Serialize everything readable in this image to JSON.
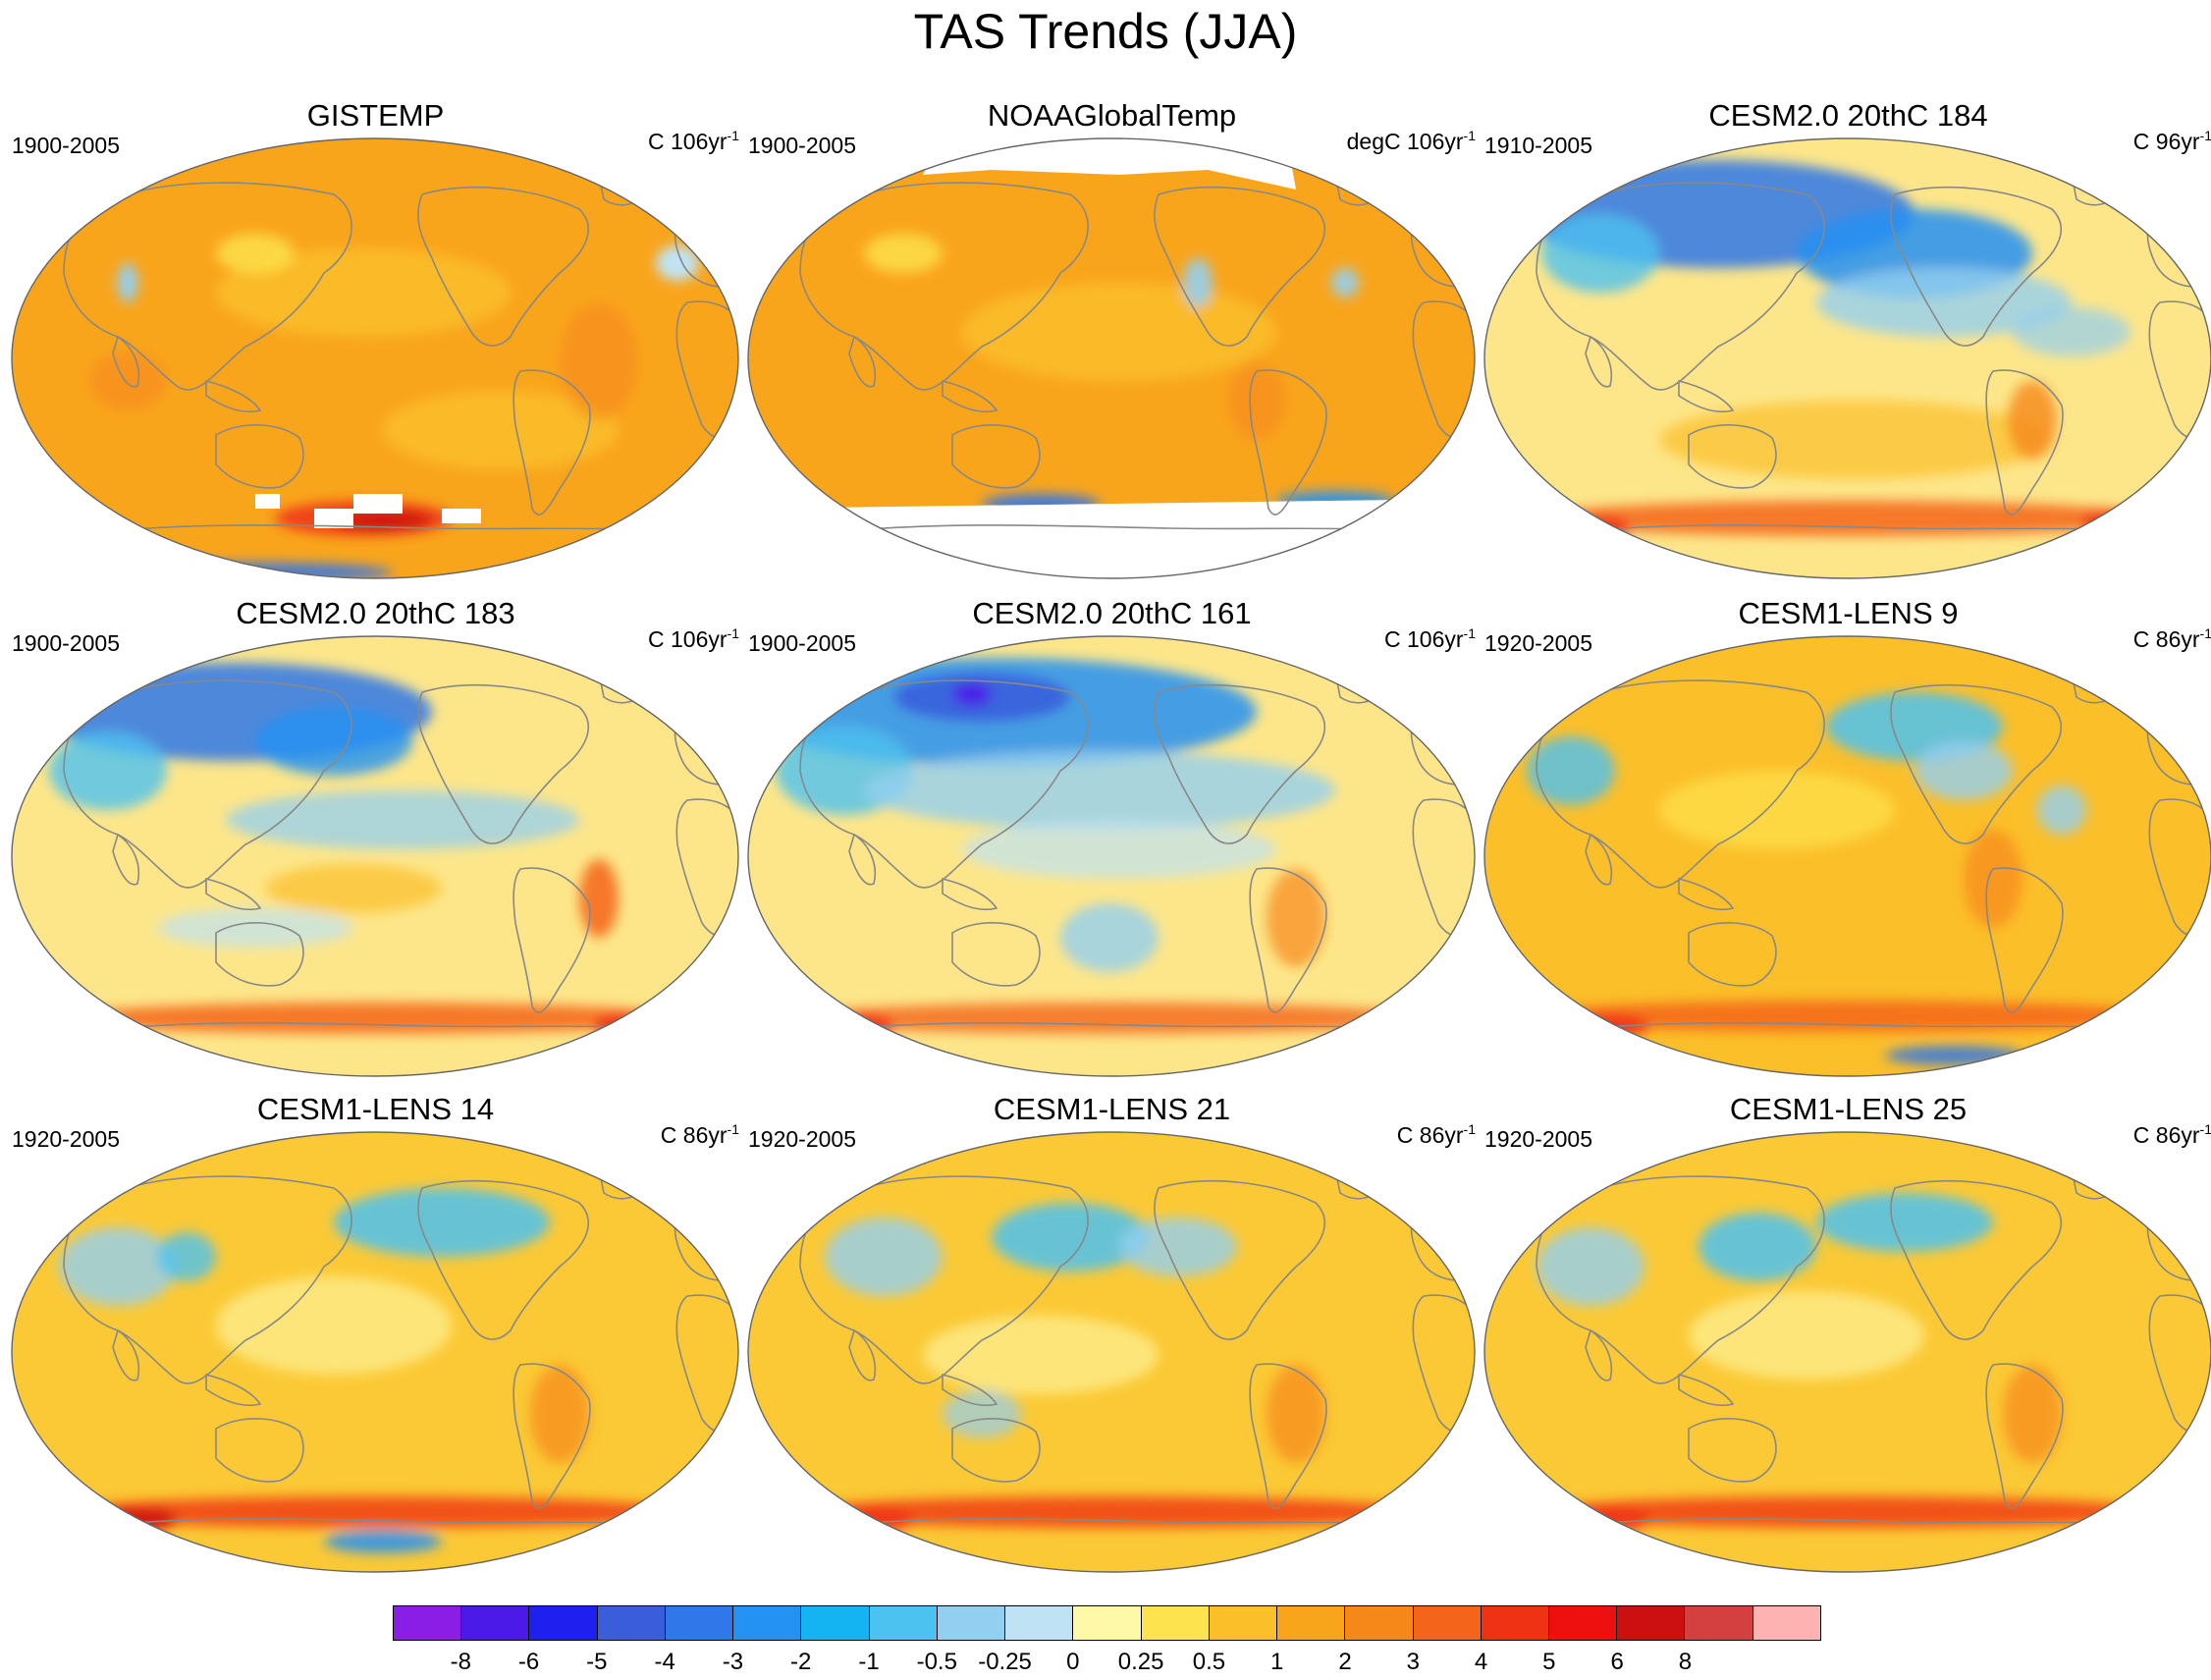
{
  "figure": {
    "title": "TAS Trends (JJA)"
  },
  "palette": {
    "ocean_base": "#fbbf2a",
    "land_outline": "#888888",
    "frame": "#666666",
    "missing": "#ffffff"
  },
  "panels": [
    {
      "title": "GISTEMP",
      "period": "1900-2005",
      "units_prefix": "C 106yr",
      "units_exp": "-1",
      "base": "#f9a51c",
      "missing": "gistemp"
    },
    {
      "title": "NOAAGlobalTemp",
      "period": "1900-2005",
      "units_prefix": "degC 106yr",
      "units_exp": "-1",
      "base": "#f9a51c",
      "missing": "noaa"
    },
    {
      "title": "CESM2.0 20thC 184",
      "period": "1910-2005",
      "units_prefix": "C 96yr",
      "units_exp": "-1",
      "base": "#fde68a",
      "missing": "none"
    },
    {
      "title": "CESM2.0 20thC 183",
      "period": "1900-2005",
      "units_prefix": "C 106yr",
      "units_exp": "-1",
      "base": "#fde68a",
      "missing": "none"
    },
    {
      "title": "CESM2.0 20thC 161",
      "period": "1900-2005",
      "units_prefix": "C 106yr",
      "units_exp": "-1",
      "base": "#fde68a",
      "missing": "none"
    },
    {
      "title": "CESM1-LENS 9",
      "period": "1920-2005",
      "units_prefix": "C 86yr",
      "units_exp": "-1",
      "base": "#fbbf2a",
      "missing": "none"
    },
    {
      "title": "CESM1-LENS 14",
      "period": "1920-2005",
      "units_prefix": "C 86yr",
      "units_exp": "-1",
      "base": "#fbc935",
      "missing": "none"
    },
    {
      "title": "CESM1-LENS 21",
      "period": "1920-2005",
      "units_prefix": "C 86yr",
      "units_exp": "-1",
      "base": "#fbc935",
      "missing": "none"
    },
    {
      "title": "CESM1-LENS 25",
      "period": "1920-2005",
      "units_prefix": "C 86yr",
      "units_exp": "-1",
      "base": "#fbc935",
      "missing": "none"
    }
  ],
  "colorbar": {
    "colors": [
      "#8a1ee6",
      "#4b1ae8",
      "#1f1ff0",
      "#3a5ddc",
      "#3077e9",
      "#2392f2",
      "#13b4f1",
      "#4cc2f0",
      "#93cff0",
      "#bfe3f4",
      "#fef9a8",
      "#fde34d",
      "#fbbf2a",
      "#f9a51c",
      "#f6881a",
      "#f4641a",
      "#ef3214",
      "#ee0f0f",
      "#cc1010",
      "#d43f3f",
      "#feb3b3"
    ],
    "labels": [
      "-8",
      "-6",
      "-5",
      "-4",
      "-3",
      "-2",
      "-1",
      "-0.5",
      "-0.25",
      "0",
      "0.25",
      "0.5",
      "1",
      "2",
      "3",
      "4",
      "5",
      "6",
      "8"
    ]
  }
}
